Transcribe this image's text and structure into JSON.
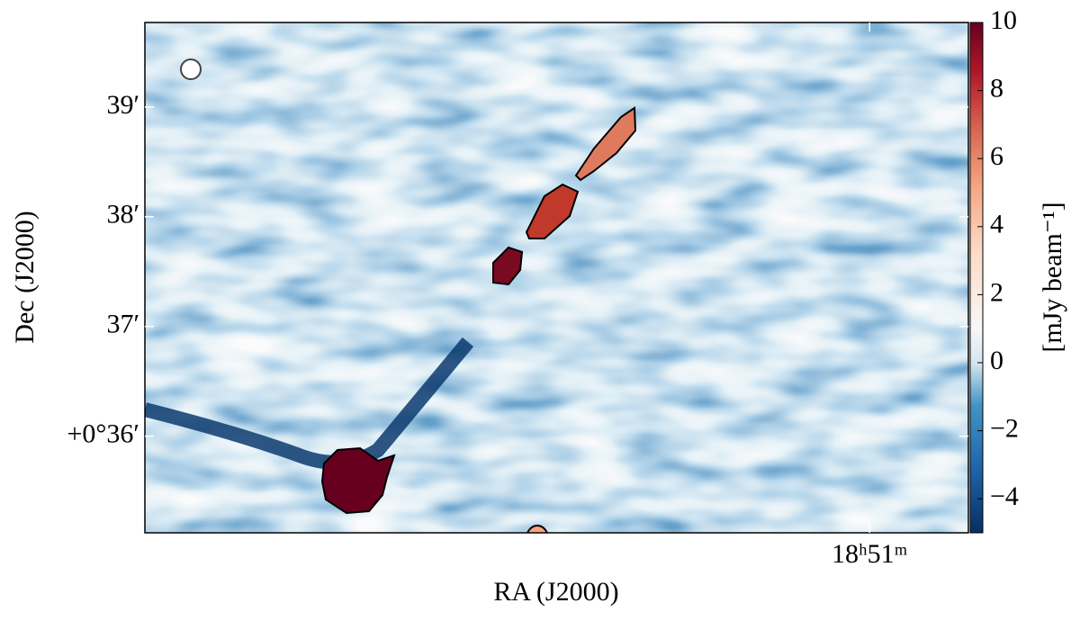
{
  "chart_data": {
    "type": "image",
    "xlabel": "RA (J2000)",
    "ylabel": "Dec (J2000)",
    "xlim": [
      67886.4,
      67856.4
    ],
    "ylim": [
      35.12,
      39.77
    ],
    "xticks": [
      {
        "value": 67860,
        "label": "18ʰ51ᵐ"
      }
    ],
    "yticks": [
      {
        "value": 36,
        "label": "+0°36′"
      },
      {
        "value": 37,
        "label": "37′"
      },
      {
        "value": 38,
        "label": "38′"
      },
      {
        "value": 39,
        "label": "39′"
      }
    ],
    "colorbar": {
      "label": "[mJy beam⁻¹]",
      "lim": [
        -5,
        10
      ],
      "ticks": [
        10,
        8,
        6,
        4,
        2,
        0,
        {
          "value": -2,
          "label": "−2"
        },
        {
          "value": -4,
          "label": "−4"
        }
      ]
    }
  }
}
